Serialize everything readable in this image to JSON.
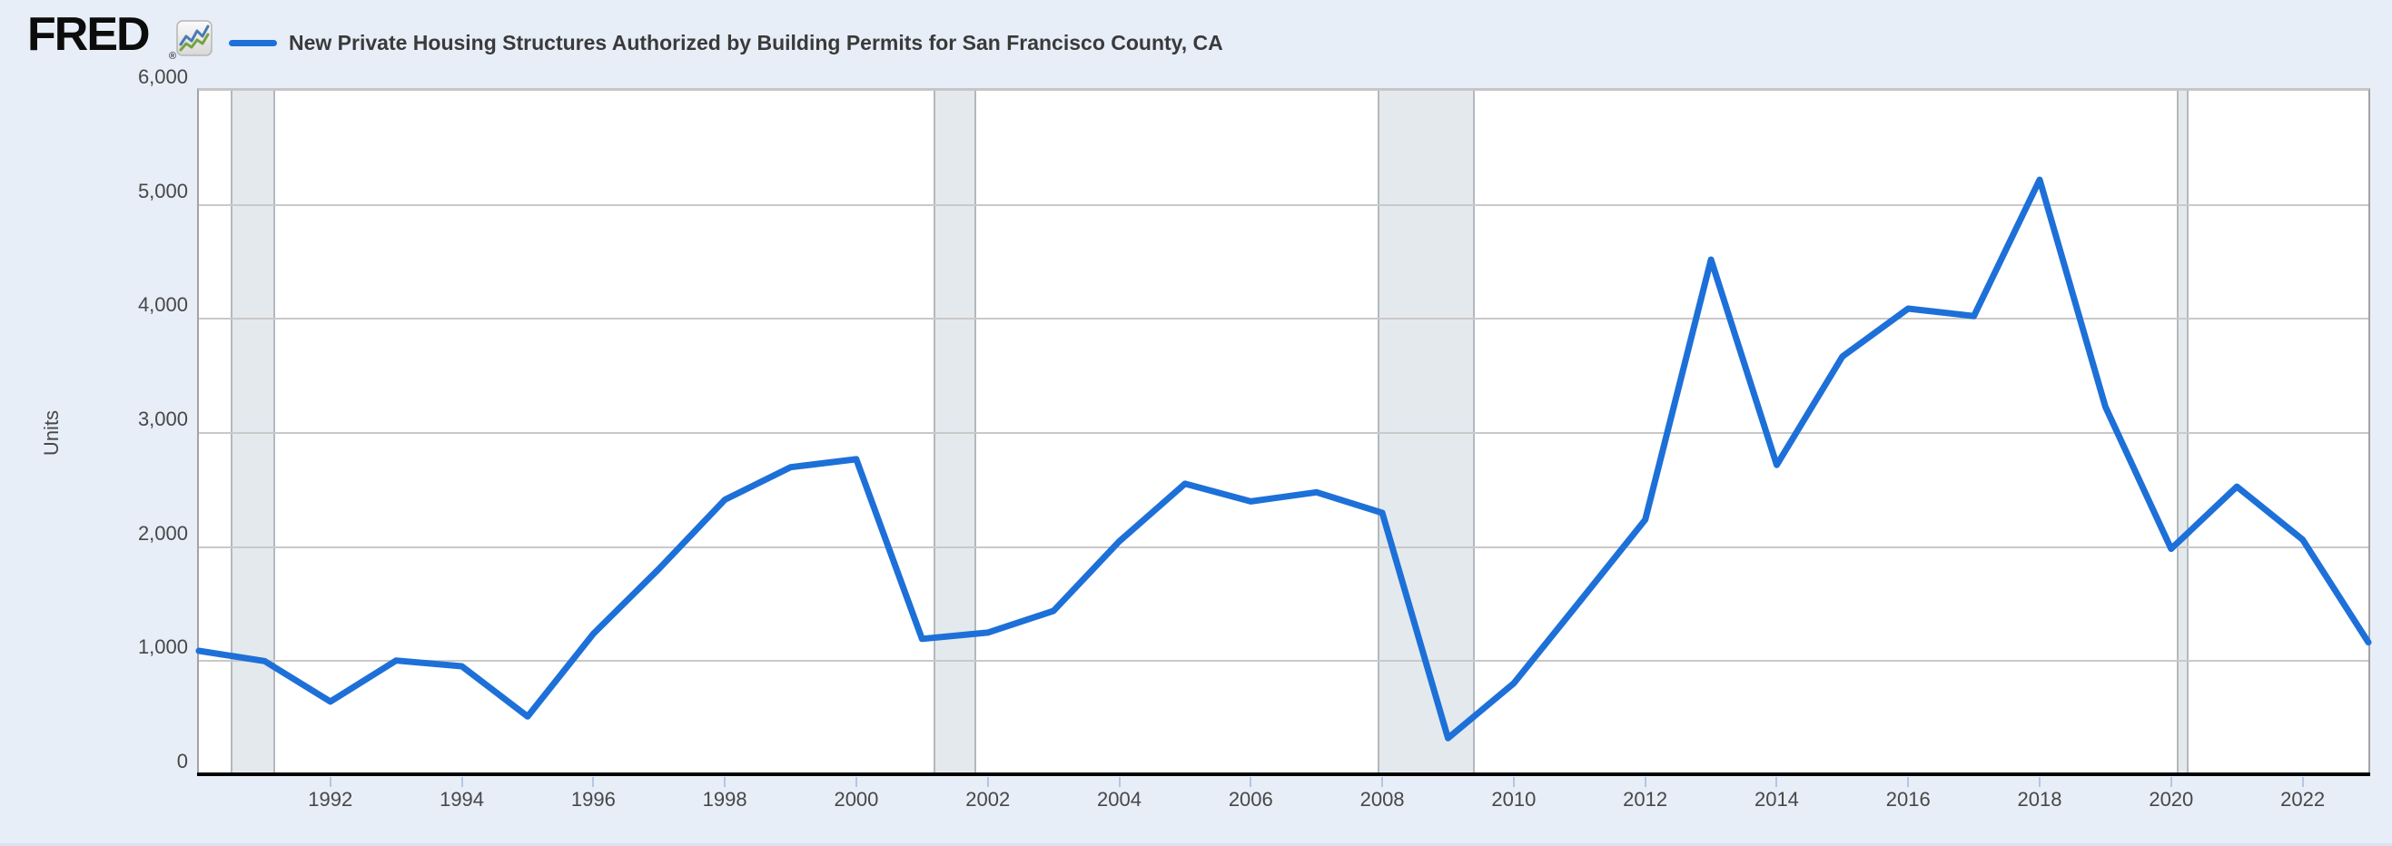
{
  "header": {
    "logo_text": "FRED",
    "registered_mark": "®",
    "logo_icon": "fred-sparkline-icon",
    "series_title": "New Private Housing Structures Authorized by Building Permits for San Francisco County, CA"
  },
  "y_axis": {
    "title": "Units"
  },
  "chart_data": {
    "type": "line",
    "title": "New Private Housing Structures Authorized by Building Permits for San Francisco County, CA",
    "ylabel": "Units",
    "xlabel": "",
    "grid": "horizontal",
    "legend_position": "top-left",
    "xlim": [
      1990,
      2023
    ],
    "ylim": [
      0,
      6000
    ],
    "xticks": [
      1992,
      1994,
      1996,
      1998,
      2000,
      2002,
      2004,
      2006,
      2008,
      2010,
      2012,
      2014,
      2016,
      2018,
      2020,
      2022
    ],
    "yticks": [
      {
        "value": 0,
        "label": "0"
      },
      {
        "value": 1000,
        "label": "1,000"
      },
      {
        "value": 2000,
        "label": "2,000"
      },
      {
        "value": 3000,
        "label": "3,000"
      },
      {
        "value": 4000,
        "label": "4,000"
      },
      {
        "value": 5000,
        "label": "5,000"
      },
      {
        "value": 6000,
        "label": "6,000"
      }
    ],
    "x": [
      1990,
      1991,
      1992,
      1993,
      1994,
      1995,
      1996,
      1997,
      1998,
      1999,
      2000,
      2001,
      2002,
      2003,
      2004,
      2005,
      2006,
      2007,
      2008,
      2009,
      2010,
      2011,
      2012,
      2013,
      2014,
      2015,
      2016,
      2017,
      2018,
      2019,
      2020,
      2021,
      2022,
      2023
    ],
    "series": [
      {
        "name": "New Private Housing Structures Authorized by Building Permits for San Francisco County, CA",
        "color": "#1d70d8",
        "values": [
          1090,
          1000,
          645,
          1005,
          955,
          515,
          1240,
          1810,
          2415,
          2700,
          2770,
          1195,
          1250,
          1440,
          2050,
          2555,
          2400,
          2480,
          2300,
          325,
          805,
          1520,
          2240,
          4520,
          2720,
          3670,
          4090,
          4025,
          5220,
          3230,
          1985,
          2530,
          2065,
          1165
        ]
      }
    ],
    "recession_bands": [
      {
        "start": 1990.48,
        "end": 1991.16
      },
      {
        "start": 2001.17,
        "end": 2001.82
      },
      {
        "start": 2007.93,
        "end": 2009.41
      },
      {
        "start": 2020.08,
        "end": 2020.26
      }
    ]
  },
  "colors": {
    "page_bg": "#e7eef8",
    "plot_bg": "#ffffff",
    "gridline": "#c9c9c9",
    "plot_border": "#a3a3a3",
    "axis_line": "#000000",
    "recession_fill": "#e4e9ee",
    "recession_edge": "#b4b8bc",
    "tick_mark": "#b3c6e4",
    "tick_label": "#474747",
    "title_text": "#3a3a3a",
    "series_line": "#1d70d8",
    "bottom_strip": "#d9e3f1",
    "logo_black": "#0c0c0c",
    "icon_blue": "#4a7ab5",
    "icon_green": "#76a240"
  }
}
